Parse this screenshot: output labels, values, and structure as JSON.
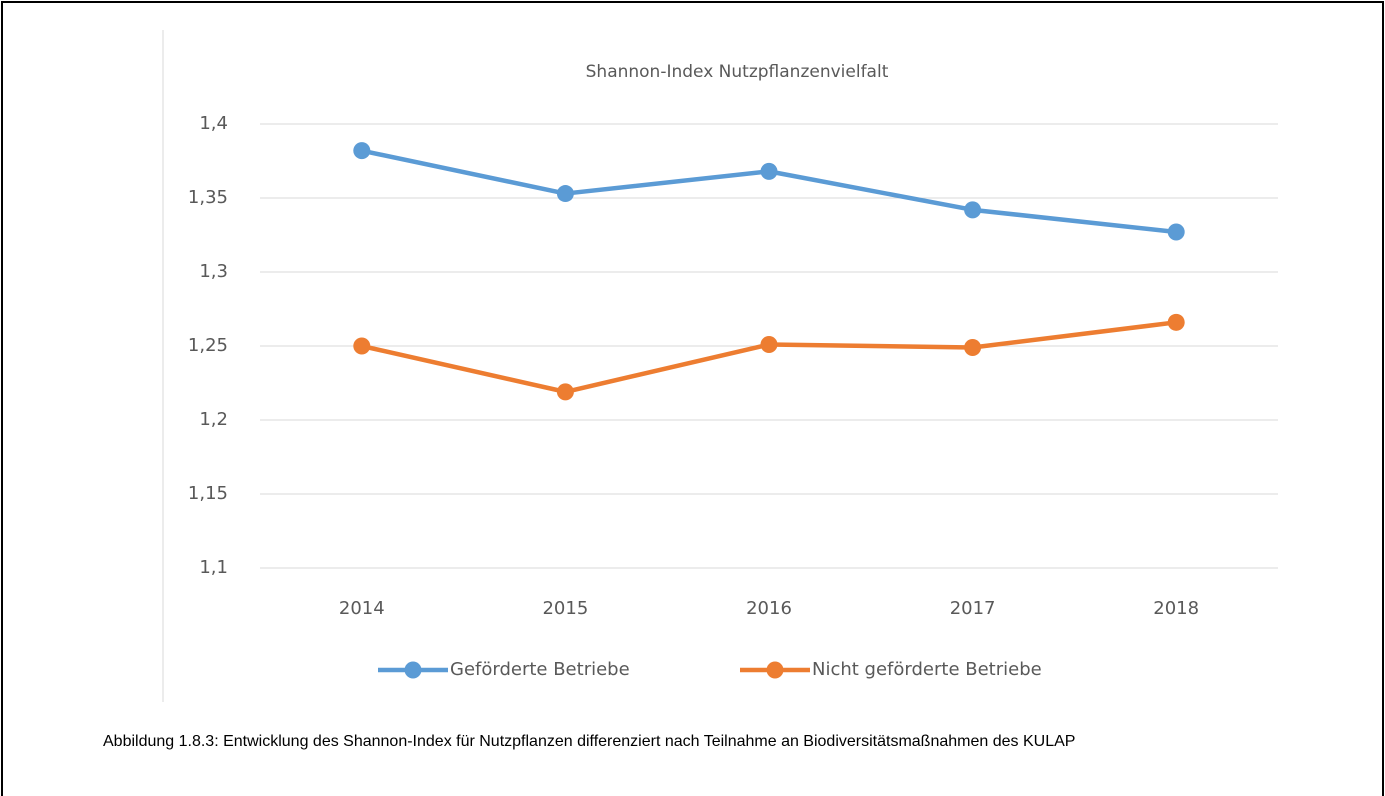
{
  "chart_data": {
    "type": "line",
    "title": "Shannon-Index  Nutzpflanzenvielfalt",
    "categories": [
      "2014",
      "2015",
      "2016",
      "2017",
      "2018"
    ],
    "series": [
      {
        "name": "Geförderte Betriebe",
        "color": "#5b9bd5",
        "values": [
          1.382,
          1.353,
          1.368,
          1.342,
          1.327
        ]
      },
      {
        "name": "Nicht geförderte Betriebe",
        "color": "#ed7d31",
        "values": [
          1.25,
          1.219,
          1.251,
          1.249,
          1.266
        ]
      }
    ],
    "ylim": [
      1.1,
      1.4
    ],
    "yticks": [
      {
        "value": 1.1,
        "label": "1,1"
      },
      {
        "value": 1.15,
        "label": "1,15"
      },
      {
        "value": 1.2,
        "label": "1,2"
      },
      {
        "value": 1.25,
        "label": "1,25"
      },
      {
        "value": 1.3,
        "label": "1,3"
      },
      {
        "value": 1.35,
        "label": "1,35"
      },
      {
        "value": 1.4,
        "label": "1,4"
      }
    ],
    "grid": true,
    "legend": "bottom"
  },
  "caption": "Abbildung 1.8.3: Entwicklung des Shannon-Index für Nutzpflanzen differenziert nach Teilnahme an Biodiversitätsmaßnahmen des KULAP"
}
